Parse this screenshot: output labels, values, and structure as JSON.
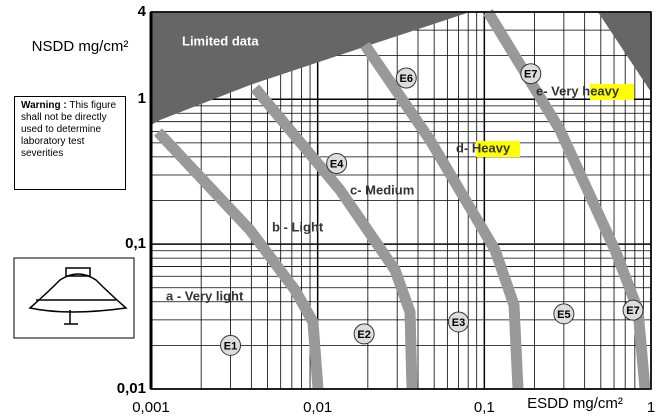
{
  "chart_data": {
    "type": "scatter",
    "x_label": "ESDD mg/cm²",
    "y_label": "NSDD mg/cm²",
    "log_x": true,
    "log_y": true,
    "grid": true,
    "xlim": [
      0.001,
      1
    ],
    "ylim": [
      0.01,
      4
    ],
    "xticks": [
      {
        "value": 0.001,
        "label": "0,001"
      },
      {
        "value": 0.01,
        "label": "0,01"
      },
      {
        "value": 0.1,
        "label": "0,1"
      },
      1
    ],
    "yticks": [
      {
        "value": 0.01,
        "label": "0,01"
      },
      {
        "value": 0.1,
        "label": "0,1"
      },
      1,
      4
    ],
    "xminor": [
      0.002,
      0.003,
      0.004,
      0.005,
      0.006,
      0.007,
      0.008,
      0.009,
      0.02,
      0.03,
      0.04,
      0.05,
      0.06,
      0.07,
      0.08,
      0.09,
      0.2,
      0.3,
      0.4,
      0.5,
      0.6,
      0.7,
      0.8,
      0.9
    ],
    "yminor": [
      0.02,
      0.03,
      0.04,
      0.05,
      0.06,
      0.07,
      0.08,
      0.09,
      0.2,
      0.3,
      0.4,
      0.5,
      0.6,
      0.7,
      0.8,
      0.9,
      2,
      3
    ],
    "points": [
      {
        "label": "E1",
        "x": 0.003,
        "y": 0.02
      },
      {
        "label": "E2",
        "x": 0.019,
        "y": 0.024
      },
      {
        "label": "E3",
        "x": 0.07,
        "y": 0.029
      },
      {
        "label": "E4",
        "x": 0.013,
        "y": 0.36
      },
      {
        "label": "E5",
        "x": 0.3,
        "y": 0.033
      },
      {
        "label": "E6",
        "x": 0.034,
        "y": 1.4
      },
      {
        "label": "E7",
        "x": 0.19,
        "y": 1.5
      },
      {
        "label": "E7",
        "x": 0.78,
        "y": 0.035
      }
    ],
    "region_label": "Limited data",
    "zones": [
      "a - Very light",
      "b - Light",
      "c- Medium",
      "d- Heavy",
      "e- Very heavy"
    ],
    "warning": {
      "label": "Warning :",
      "text": "This figure shall not be directly used to determine laboratory test severities"
    }
  }
}
